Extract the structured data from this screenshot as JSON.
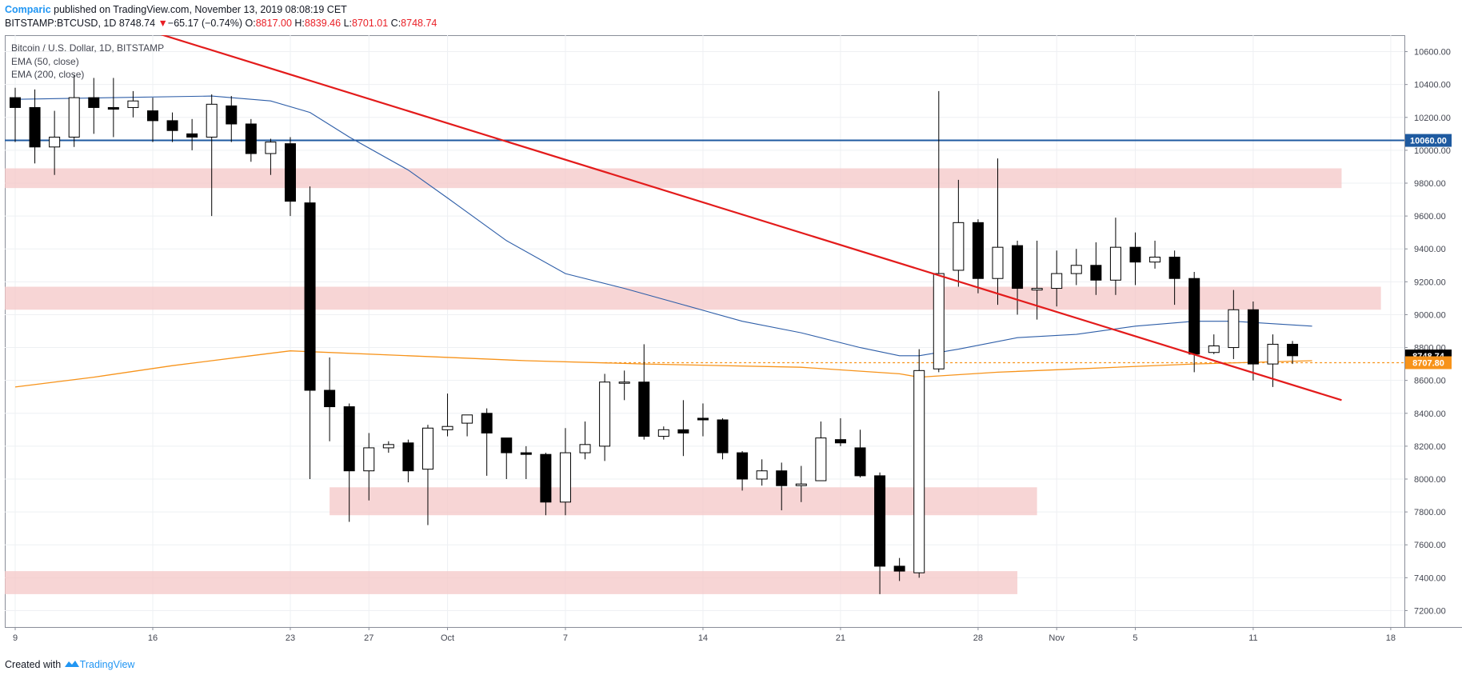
{
  "header": {
    "author": "Comparic",
    "published": "published on TradingView.com, November 13, 2019 08:08:19 CET",
    "symbol": "BITSTAMP:BTCUSD, 1D",
    "last": "8748.74",
    "change_arrow": "▼",
    "change": "−65.17 (−0.74%)",
    "o_label": "O:",
    "o": "8817.00",
    "h_label": "H:",
    "h": "8839.46",
    "l_label": "L:",
    "l": "8701.01",
    "c_label": "C:",
    "c": "8748.74"
  },
  "legend": {
    "title": "Bitcoin / U.S. Dollar, 1D, BITSTAMP",
    "ema50": "EMA (50, close)",
    "ema200": "EMA (200, close)"
  },
  "footer": {
    "created": "Created with",
    "brand": "TradingView",
    "logo_icon": "tradingview-logo-icon"
  },
  "chart_data": {
    "type": "candlestick",
    "ylim": [
      7100,
      10700
    ],
    "y_ticks": [
      7200,
      7400,
      7600,
      7800,
      8000,
      8200,
      8400,
      8600,
      8800,
      9000,
      9200,
      9400,
      9600,
      9800,
      10000,
      10200,
      10400,
      10600
    ],
    "x_ticks": [
      "9",
      "16",
      "23",
      "27",
      "Oct",
      "7",
      "14",
      "21",
      "28",
      "Nov",
      "5",
      "11",
      "18"
    ],
    "x_tick_index": [
      0,
      7,
      14,
      18,
      22,
      28,
      35,
      42,
      49,
      53,
      57,
      63,
      70
    ],
    "price_labels": [
      {
        "value": 10060,
        "text": "10060.00",
        "color": "#1e5aa0"
      },
      {
        "value": 8748.74,
        "text": "8748.74",
        "color": "#000000"
      },
      {
        "value": 8707.8,
        "text": "8707.80",
        "color": "#f7931a"
      }
    ],
    "candles": [
      [
        10320,
        10380,
        10050,
        10260
      ],
      [
        10260,
        10370,
        9920,
        10020
      ],
      [
        10020,
        10240,
        9850,
        10080
      ],
      [
        10080,
        10460,
        10020,
        10320
      ],
      [
        10320,
        10440,
        10100,
        10260
      ],
      [
        10260,
        10440,
        10080,
        10250
      ],
      [
        10260,
        10360,
        10200,
        10300
      ],
      [
        10240,
        10320,
        10050,
        10180
      ],
      [
        10180,
        10230,
        10050,
        10120
      ],
      [
        10100,
        10190,
        10000,
        10080
      ],
      [
        10080,
        10340,
        9600,
        10280
      ],
      [
        10270,
        10330,
        10050,
        10160
      ],
      [
        10160,
        10190,
        9930,
        9980
      ],
      [
        9980,
        10070,
        9850,
        10050
      ],
      [
        10040,
        10080,
        9600,
        9690
      ],
      [
        9680,
        9780,
        8000,
        8540
      ],
      [
        8540,
        8740,
        8230,
        8440
      ],
      [
        8440,
        8460,
        7740,
        8050
      ],
      [
        8050,
        8280,
        7870,
        8190
      ],
      [
        8190,
        8230,
        8160,
        8210
      ],
      [
        8220,
        8240,
        7980,
        8050
      ],
      [
        8060,
        8330,
        7720,
        8310
      ],
      [
        8300,
        8520,
        8260,
        8320
      ],
      [
        8340,
        8390,
        8260,
        8390
      ],
      [
        8400,
        8430,
        8020,
        8280
      ],
      [
        8250,
        8250,
        8000,
        8160
      ],
      [
        8160,
        8200,
        8000,
        8150
      ],
      [
        8150,
        8160,
        7780,
        7860
      ],
      [
        7860,
        8310,
        7780,
        8160
      ],
      [
        8160,
        8350,
        8120,
        8210
      ],
      [
        8200,
        8640,
        8110,
        8590
      ],
      [
        8590,
        8660,
        8480,
        8590
      ],
      [
        8590,
        8820,
        8240,
        8260
      ],
      [
        8260,
        8320,
        8240,
        8300
      ],
      [
        8300,
        8480,
        8140,
        8280
      ],
      [
        8370,
        8460,
        8260,
        8360
      ],
      [
        8360,
        8370,
        8120,
        8160
      ],
      [
        8160,
        8170,
        7930,
        8000
      ],
      [
        8000,
        8120,
        7960,
        8050
      ],
      [
        8050,
        8100,
        7810,
        7960
      ],
      [
        7960,
        8080,
        7860,
        7970
      ],
      [
        7990,
        8350,
        7990,
        8250
      ],
      [
        8240,
        8370,
        8200,
        8220
      ],
      [
        8190,
        8300,
        8010,
        8020
      ],
      [
        8020,
        8040,
        7300,
        7470
      ],
      [
        7470,
        7520,
        7380,
        7440
      ],
      [
        7430,
        8790,
        7400,
        8660
      ],
      [
        8670,
        10360,
        8650,
        9250
      ],
      [
        9270,
        9820,
        9170,
        9560
      ],
      [
        9560,
        9580,
        9130,
        9220
      ],
      [
        9220,
        9950,
        9060,
        9410
      ],
      [
        9420,
        9450,
        9000,
        9160
      ],
      [
        9150,
        9450,
        8970,
        9160
      ],
      [
        9160,
        9390,
        9050,
        9250
      ],
      [
        9250,
        9400,
        9180,
        9300
      ],
      [
        9300,
        9440,
        9120,
        9210
      ],
      [
        9210,
        9590,
        9120,
        9410
      ],
      [
        9410,
        9500,
        9180,
        9320
      ],
      [
        9320,
        9450,
        9280,
        9350
      ],
      [
        9350,
        9390,
        9060,
        9220
      ],
      [
        9220,
        9260,
        8650,
        8760
      ],
      [
        8770,
        8880,
        8760,
        8810
      ],
      [
        8800,
        9150,
        8730,
        9030
      ],
      [
        9030,
        9080,
        8600,
        8700
      ],
      [
        8700,
        8880,
        8560,
        8820
      ],
      [
        8820,
        8840,
        8700,
        8750
      ]
    ],
    "ema50": [
      [
        0,
        10310
      ],
      [
        5,
        10320
      ],
      [
        10,
        10330
      ],
      [
        13,
        10300
      ],
      [
        15,
        10230
      ],
      [
        17,
        10080
      ],
      [
        20,
        9880
      ],
      [
        22,
        9710
      ],
      [
        25,
        9450
      ],
      [
        28,
        9250
      ],
      [
        31,
        9160
      ],
      [
        34,
        9060
      ],
      [
        37,
        8960
      ],
      [
        40,
        8890
      ],
      [
        43,
        8800
      ],
      [
        45,
        8750
      ],
      [
        46,
        8750
      ],
      [
        48,
        8790
      ],
      [
        51,
        8860
      ],
      [
        54,
        8880
      ],
      [
        57,
        8930
      ],
      [
        60,
        8960
      ],
      [
        62,
        8960
      ],
      [
        66,
        8930
      ]
    ],
    "ema200": [
      [
        0,
        8560
      ],
      [
        4,
        8620
      ],
      [
        8,
        8690
      ],
      [
        12,
        8750
      ],
      [
        14,
        8780
      ],
      [
        20,
        8750
      ],
      [
        26,
        8720
      ],
      [
        32,
        8700
      ],
      [
        40,
        8680
      ],
      [
        45,
        8640
      ],
      [
        46,
        8620
      ],
      [
        50,
        8650
      ],
      [
        54,
        8670
      ],
      [
        60,
        8700
      ],
      [
        66,
        8720
      ]
    ],
    "trendline": {
      "from": [
        7.0,
        10720
      ],
      "to": [
        67.5,
        8480
      ],
      "color": "#e31b1b"
    },
    "resistance_line": {
      "value": 10060,
      "color": "#1e5aa0"
    },
    "price_line": {
      "value": 8707.8,
      "from_index": 30,
      "color": "#f7931a"
    },
    "zones": [
      {
        "from_index": -0.6,
        "to_index": 67.5,
        "low": 9770,
        "high": 9890
      },
      {
        "from_index": -0.6,
        "to_index": 69.5,
        "low": 9030,
        "high": 9170
      },
      {
        "from_index": 16.0,
        "to_index": 52.0,
        "low": 7780,
        "high": 7950
      },
      {
        "from_index": -0.6,
        "to_index": 51.0,
        "low": 7300,
        "high": 7440
      }
    ],
    "colors": {
      "up": "#ffffff",
      "down": "#000000",
      "ema50": "#2e5ea8",
      "ema200": "#f7931a",
      "zone": "#f4c7c7"
    }
  }
}
